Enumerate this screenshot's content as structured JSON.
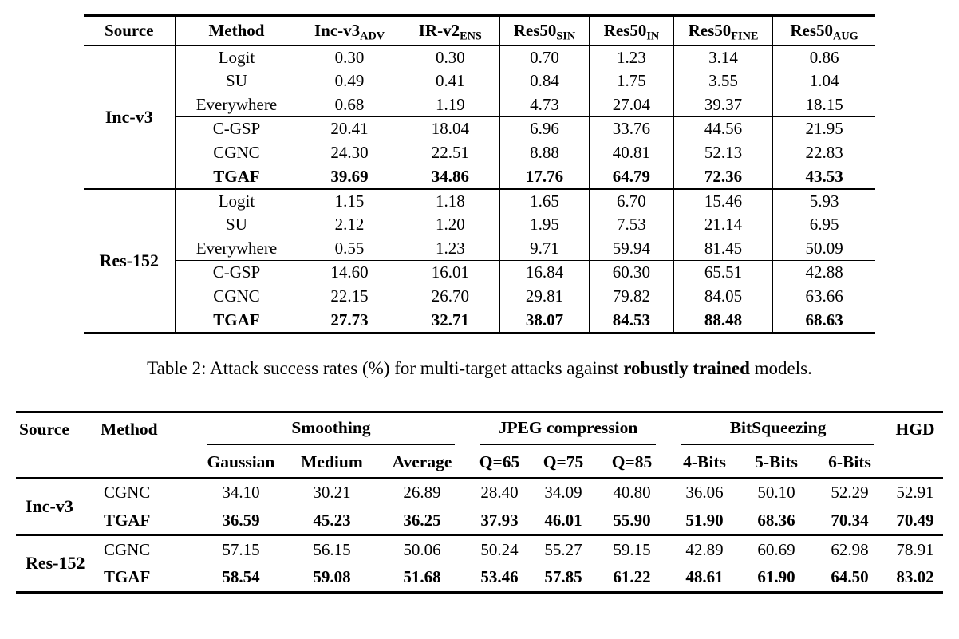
{
  "table1": {
    "columns": [
      {
        "base": "Source",
        "sub": ""
      },
      {
        "base": "Method",
        "sub": ""
      },
      {
        "base": "Inc-v3",
        "sub": "ADV"
      },
      {
        "base": "IR-v2",
        "sub": "ENS"
      },
      {
        "base": "Res50",
        "sub": "SIN"
      },
      {
        "base": "Res50",
        "sub": "IN"
      },
      {
        "base": "Res50",
        "sub": "FINE"
      },
      {
        "base": "Res50",
        "sub": "AUG"
      }
    ],
    "groups": [
      {
        "source": "Inc-v3",
        "rows": [
          {
            "method": "Logit",
            "values": [
              "0.30",
              "0.30",
              "0.70",
              "1.23",
              "3.14",
              "0.86"
            ],
            "bold": false,
            "rule": false
          },
          {
            "method": "SU",
            "values": [
              "0.49",
              "0.41",
              "0.84",
              "1.75",
              "3.55",
              "1.04"
            ],
            "bold": false,
            "rule": false
          },
          {
            "method": "Everywhere",
            "values": [
              "0.68",
              "1.19",
              "4.73",
              "27.04",
              "39.37",
              "18.15"
            ],
            "bold": false,
            "rule": false
          },
          {
            "method": "C-GSP",
            "values": [
              "20.41",
              "18.04",
              "6.96",
              "33.76",
              "44.56",
              "21.95"
            ],
            "bold": false,
            "rule": true
          },
          {
            "method": "CGNC",
            "values": [
              "24.30",
              "22.51",
              "8.88",
              "40.81",
              "52.13",
              "22.83"
            ],
            "bold": false,
            "rule": false
          },
          {
            "method": "TGAF",
            "values": [
              "39.69",
              "34.86",
              "17.76",
              "64.79",
              "72.36",
              "43.53"
            ],
            "bold": true,
            "rule": false
          }
        ]
      },
      {
        "source": "Res-152",
        "rows": [
          {
            "method": "Logit",
            "values": [
              "1.15",
              "1.18",
              "1.65",
              "6.70",
              "15.46",
              "5.93"
            ],
            "bold": false,
            "rule": false
          },
          {
            "method": "SU",
            "values": [
              "2.12",
              "1.20",
              "1.95",
              "7.53",
              "21.14",
              "6.95"
            ],
            "bold": false,
            "rule": false
          },
          {
            "method": "Everywhere",
            "values": [
              "0.55",
              "1.23",
              "9.71",
              "59.94",
              "81.45",
              "50.09"
            ],
            "bold": false,
            "rule": false
          },
          {
            "method": "C-GSP",
            "values": [
              "14.60",
              "16.01",
              "16.84",
              "60.30",
              "65.51",
              "42.88"
            ],
            "bold": false,
            "rule": true
          },
          {
            "method": "CGNC",
            "values": [
              "22.15",
              "26.70",
              "29.81",
              "79.82",
              "84.05",
              "63.66"
            ],
            "bold": false,
            "rule": false
          },
          {
            "method": "TGAF",
            "values": [
              "27.73",
              "32.71",
              "38.07",
              "84.53",
              "88.48",
              "68.63"
            ],
            "bold": true,
            "rule": false
          }
        ]
      }
    ]
  },
  "caption": {
    "prefix": "Table 2: Attack success rates (%) for multi-target attacks against ",
    "bold": "robustly trained",
    "suffix": " models."
  },
  "table2": {
    "header": {
      "source": "Source",
      "method": "Method",
      "groups": [
        {
          "label": "Smoothing",
          "cols": [
            "Gaussian",
            "Medium",
            "Average"
          ]
        },
        {
          "label": "JPEG compression",
          "cols": [
            "Q=65",
            "Q=75",
            "Q=85"
          ]
        },
        {
          "label": "BitSqueezing",
          "cols": [
            "4-Bits",
            "5-Bits",
            "6-Bits"
          ]
        }
      ],
      "hgd": "HGD"
    },
    "groups": [
      {
        "source": "Inc-v3",
        "rows": [
          {
            "method": "CGNC",
            "values": [
              "34.10",
              "30.21",
              "26.89",
              "28.40",
              "34.09",
              "40.80",
              "36.06",
              "50.10",
              "52.29",
              "52.91"
            ],
            "bold": false
          },
          {
            "method": "TGAF",
            "values": [
              "36.59",
              "45.23",
              "36.25",
              "37.93",
              "46.01",
              "55.90",
              "51.90",
              "68.36",
              "70.34",
              "70.49"
            ],
            "bold": true
          }
        ]
      },
      {
        "source": "Res-152",
        "rows": [
          {
            "method": "CGNC",
            "values": [
              "57.15",
              "56.15",
              "50.06",
              "50.24",
              "55.27",
              "59.15",
              "42.89",
              "60.69",
              "62.98",
              "78.91"
            ],
            "bold": false
          },
          {
            "method": "TGAF",
            "values": [
              "58.54",
              "59.08",
              "51.68",
              "53.46",
              "57.85",
              "61.22",
              "48.61",
              "61.90",
              "64.50",
              "83.02"
            ],
            "bold": true
          }
        ]
      }
    ]
  }
}
